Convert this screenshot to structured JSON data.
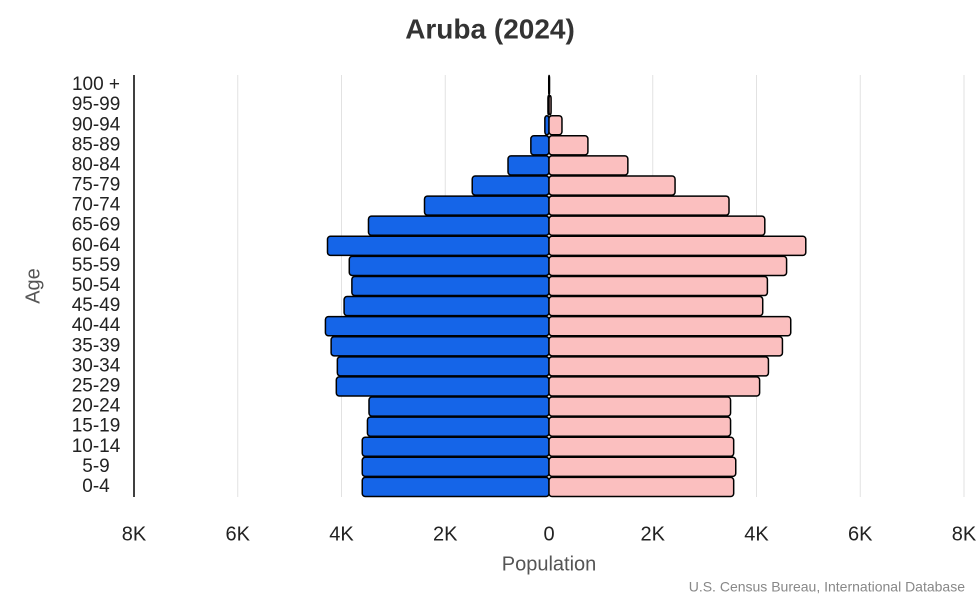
{
  "chart_data": {
    "type": "pyramid",
    "title": "Aruba (2024)",
    "x_label": "Population",
    "y_label": "Age",
    "source": "U.S. Census Bureau, International Database",
    "categories": [
      "0-4",
      "5-9",
      "10-14",
      "15-19",
      "20-24",
      "25-29",
      "30-34",
      "35-39",
      "40-44",
      "45-49",
      "50-54",
      "55-59",
      "60-64",
      "65-69",
      "70-74",
      "75-79",
      "80-84",
      "85-89",
      "90-94",
      "95-99",
      "100 +"
    ],
    "series": [
      {
        "color": "#1565e8",
        "values": [
          -3600,
          -3600,
          -3600,
          -3500,
          -3470,
          -4100,
          -4080,
          -4200,
          -4310,
          -3950,
          -3800,
          -3850,
          -4270,
          -3480,
          -2400,
          -1480,
          -790,
          -350,
          -80,
          -20,
          -5
        ]
      },
      {
        "color": "#fbbfbf",
        "values": [
          3560,
          3600,
          3560,
          3500,
          3500,
          4060,
          4230,
          4500,
          4660,
          4120,
          4210,
          4580,
          4950,
          4160,
          3470,
          2430,
          1520,
          750,
          250,
          40,
          10
        ]
      }
    ],
    "xlim": [
      -8000,
      8000
    ],
    "xticks": [
      {
        "value": -8000,
        "label": "8K"
      },
      {
        "value": -6000,
        "label": "6K"
      },
      {
        "value": -4000,
        "label": "4K"
      },
      {
        "value": -2000,
        "label": "2K"
      },
      0,
      {
        "value": 2000,
        "label": "2K"
      },
      {
        "value": 4000,
        "label": "4K"
      },
      {
        "value": 6000,
        "label": "6K"
      },
      {
        "value": 8000,
        "label": "8K"
      }
    ],
    "grid": true
  }
}
